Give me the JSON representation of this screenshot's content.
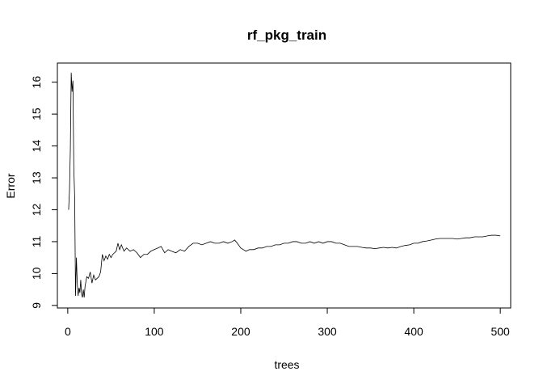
{
  "chart_data": {
    "type": "line",
    "title": "rf_pkg_train",
    "xlabel": "trees",
    "ylabel": "Error",
    "xlim": [
      -12,
      512
    ],
    "ylim": [
      8.92,
      16.6
    ],
    "x_ticks": [
      0,
      100,
      200,
      300,
      400,
      500
    ],
    "y_ticks": [
      9,
      10,
      11,
      12,
      13,
      14,
      15,
      16
    ],
    "grid": false,
    "legend": "none",
    "series": [
      {
        "color": "#000000",
        "points": [
          [
            1,
            12.0
          ],
          [
            2,
            12.6
          ],
          [
            3,
            13.9
          ],
          [
            4,
            16.3
          ],
          [
            5,
            15.7
          ],
          [
            6,
            16.05
          ],
          [
            7,
            13.3
          ],
          [
            8,
            12.4
          ],
          [
            9,
            9.3
          ],
          [
            10,
            10.5
          ],
          [
            11,
            9.7
          ],
          [
            12,
            9.3
          ],
          [
            13,
            9.55
          ],
          [
            14,
            9.4
          ],
          [
            15,
            9.8
          ],
          [
            16,
            9.35
          ],
          [
            17,
            9.25
          ],
          [
            18,
            9.5
          ],
          [
            19,
            9.25
          ],
          [
            20,
            9.6
          ],
          [
            22,
            9.9
          ],
          [
            24,
            9.85
          ],
          [
            26,
            10.05
          ],
          [
            28,
            9.7
          ],
          [
            30,
            9.95
          ],
          [
            32,
            9.8
          ],
          [
            34,
            9.85
          ],
          [
            36,
            9.9
          ],
          [
            38,
            10.05
          ],
          [
            40,
            10.6
          ],
          [
            42,
            10.4
          ],
          [
            44,
            10.55
          ],
          [
            46,
            10.45
          ],
          [
            48,
            10.6
          ],
          [
            50,
            10.5
          ],
          [
            52,
            10.6
          ],
          [
            54,
            10.65
          ],
          [
            56,
            10.7
          ],
          [
            58,
            10.95
          ],
          [
            60,
            10.75
          ],
          [
            62,
            10.9
          ],
          [
            65,
            10.7
          ],
          [
            68,
            10.8
          ],
          [
            72,
            10.7
          ],
          [
            76,
            10.75
          ],
          [
            80,
            10.65
          ],
          [
            84,
            10.5
          ],
          [
            88,
            10.6
          ],
          [
            92,
            10.6
          ],
          [
            96,
            10.7
          ],
          [
            100,
            10.75
          ],
          [
            104,
            10.8
          ],
          [
            108,
            10.85
          ],
          [
            112,
            10.65
          ],
          [
            116,
            10.75
          ],
          [
            120,
            10.7
          ],
          [
            125,
            10.65
          ],
          [
            130,
            10.75
          ],
          [
            135,
            10.7
          ],
          [
            140,
            10.85
          ],
          [
            145,
            10.95
          ],
          [
            150,
            10.95
          ],
          [
            155,
            10.9
          ],
          [
            160,
            10.95
          ],
          [
            165,
            11.0
          ],
          [
            170,
            10.95
          ],
          [
            175,
            10.95
          ],
          [
            180,
            11.0
          ],
          [
            185,
            10.95
          ],
          [
            190,
            11.0
          ],
          [
            193,
            11.05
          ],
          [
            196,
            10.95
          ],
          [
            200,
            10.8
          ],
          [
            203,
            10.75
          ],
          [
            206,
            10.7
          ],
          [
            210,
            10.75
          ],
          [
            215,
            10.75
          ],
          [
            220,
            10.8
          ],
          [
            225,
            10.8
          ],
          [
            230,
            10.85
          ],
          [
            235,
            10.85
          ],
          [
            240,
            10.9
          ],
          [
            245,
            10.9
          ],
          [
            250,
            10.95
          ],
          [
            255,
            10.95
          ],
          [
            260,
            11.0
          ],
          [
            265,
            11.0
          ],
          [
            270,
            10.95
          ],
          [
            275,
            10.95
          ],
          [
            280,
            11.0
          ],
          [
            285,
            10.95
          ],
          [
            290,
            11.0
          ],
          [
            295,
            10.95
          ],
          [
            300,
            11.0
          ],
          [
            305,
            11.0
          ],
          [
            310,
            10.95
          ],
          [
            315,
            10.95
          ],
          [
            320,
            10.9
          ],
          [
            325,
            10.85
          ],
          [
            330,
            10.85
          ],
          [
            335,
            10.85
          ],
          [
            340,
            10.82
          ],
          [
            345,
            10.8
          ],
          [
            350,
            10.8
          ],
          [
            355,
            10.78
          ],
          [
            360,
            10.8
          ],
          [
            365,
            10.82
          ],
          [
            370,
            10.8
          ],
          [
            375,
            10.82
          ],
          [
            380,
            10.8
          ],
          [
            385,
            10.85
          ],
          [
            390,
            10.88
          ],
          [
            395,
            10.9
          ],
          [
            400,
            10.95
          ],
          [
            405,
            10.95
          ],
          [
            410,
            11.0
          ],
          [
            415,
            11.02
          ],
          [
            420,
            11.05
          ],
          [
            425,
            11.08
          ],
          [
            430,
            11.1
          ],
          [
            435,
            11.1
          ],
          [
            440,
            11.1
          ],
          [
            445,
            11.1
          ],
          [
            450,
            11.08
          ],
          [
            455,
            11.1
          ],
          [
            460,
            11.12
          ],
          [
            465,
            11.12
          ],
          [
            470,
            11.15
          ],
          [
            475,
            11.15
          ],
          [
            480,
            11.15
          ],
          [
            485,
            11.18
          ],
          [
            490,
            11.2
          ],
          [
            495,
            11.2
          ],
          [
            500,
            11.18
          ]
        ]
      }
    ]
  }
}
